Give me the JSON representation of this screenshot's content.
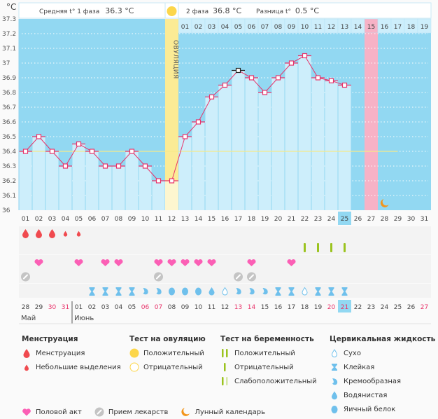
{
  "header": {
    "unit": "°C",
    "phase1_label": "Средняя t° 1 фаза",
    "phase1_value": "36.3 °C",
    "phase2_label": "2 фаза",
    "phase2_value": "36.8 °C",
    "diff_label": "Разница t°",
    "diff_value": "0.5 °C",
    "ovulation_label": "ОВУЛЯЦИЯ"
  },
  "chart_data": {
    "type": "bar",
    "title": "",
    "ylabel": "°C",
    "ylim": [
      36.0,
      37.3
    ],
    "yticks": [
      "36",
      "36.1",
      "36.2",
      "36.3",
      "36.4",
      "36.5",
      "36.6",
      "36.7",
      "36.8",
      "36.9",
      "37",
      "37.1",
      "37.2",
      "37.3"
    ],
    "coverline": 36.4,
    "cycle_days": [
      "01",
      "02",
      "03",
      "04",
      "05",
      "06",
      "07",
      "08",
      "09",
      "10",
      "11",
      "12",
      "13",
      "14",
      "15",
      "16",
      "17",
      "18",
      "19",
      "20",
      "21",
      "22",
      "23",
      "24",
      "25",
      "26",
      "27",
      "28",
      "29",
      "30",
      "31"
    ],
    "values": [
      36.4,
      36.5,
      36.4,
      36.3,
      36.45,
      36.4,
      36.3,
      36.3,
      36.4,
      36.3,
      36.2,
      36.2,
      36.5,
      36.6,
      36.77,
      36.85,
      36.95,
      36.9,
      36.8,
      36.9,
      37.0,
      37.05,
      36.9,
      36.88,
      36.85,
      null,
      null,
      null,
      null,
      null,
      null
    ],
    "highlighted_point_day": "17",
    "ovulation_day": "12",
    "current_day": "25",
    "expected_period_day": "27",
    "luteal_days": [
      "01",
      "02",
      "03",
      "04",
      "05",
      "06",
      "07",
      "08",
      "09",
      "10",
      "11",
      "12",
      "13",
      "14",
      "15",
      "16",
      "17",
      "18",
      "19"
    ],
    "luteal_highlight": "15",
    "moon_day": "28",
    "calendar_dates": [
      "28",
      "29",
      "30",
      "31",
      "01",
      "02",
      "03",
      "04",
      "05",
      "06",
      "07",
      "08",
      "09",
      "10",
      "11",
      "12",
      "13",
      "14",
      "15",
      "16",
      "17",
      "18",
      "19",
      "20",
      "21",
      "22",
      "23",
      "24",
      "25",
      "26",
      "27"
    ],
    "weekend_dates_idx": [
      2,
      3,
      9,
      10,
      16,
      17,
      23,
      24,
      30
    ],
    "today_date_idx": 24,
    "month_labels": [
      {
        "label": "Май",
        "start_idx": 0
      },
      {
        "label": "Июнь",
        "start_idx": 4
      }
    ],
    "menstruation": [
      "heavy",
      "heavy",
      "heavy",
      "light",
      "light",
      null,
      null,
      null,
      null,
      null,
      null,
      null,
      null,
      null,
      null,
      null,
      null,
      null,
      null,
      null,
      null,
      null,
      null,
      null,
      null,
      null,
      null,
      null,
      null,
      null,
      null
    ],
    "pregnancy_test": [
      null,
      null,
      null,
      null,
      null,
      null,
      null,
      null,
      null,
      null,
      null,
      null,
      null,
      null,
      null,
      null,
      null,
      null,
      null,
      null,
      null,
      "negative",
      "negative",
      "negative",
      "negative",
      null,
      null,
      null,
      null,
      null,
      null
    ],
    "intercourse": [
      false,
      true,
      false,
      false,
      true,
      false,
      true,
      true,
      false,
      false,
      true,
      true,
      true,
      true,
      true,
      false,
      false,
      true,
      false,
      false,
      true,
      false,
      false,
      false,
      false,
      false,
      false,
      false,
      false,
      false,
      false
    ],
    "medication": [
      true,
      false,
      false,
      false,
      false,
      false,
      false,
      false,
      false,
      false,
      true,
      false,
      false,
      false,
      false,
      false,
      true,
      true,
      false,
      false,
      false,
      false,
      false,
      false,
      false,
      false,
      false,
      false,
      false,
      false,
      false
    ],
    "cervical_fluid": [
      null,
      null,
      null,
      null,
      null,
      "sticky",
      "sticky",
      "sticky",
      "sticky",
      "creamy",
      "creamy",
      "egg",
      "egg",
      "egg",
      "watery",
      "dry",
      "creamy",
      "creamy",
      "creamy",
      "sticky",
      "sticky",
      "dry",
      "sticky",
      "sticky",
      "sticky",
      null,
      null,
      null,
      null,
      null,
      null
    ]
  },
  "legend": {
    "menstruation": {
      "title": "Менструация",
      "items": [
        "Менструация",
        "Небольшие выделения"
      ]
    },
    "ovulation_test": {
      "title": "Тест на овуляцию",
      "items": [
        "Положительный",
        "Отрицательный"
      ]
    },
    "pregnancy_test": {
      "title": "Тест на беременность",
      "items": [
        "Положительный",
        "Отрицательный",
        "Слабоположительный"
      ]
    },
    "cervical_fluid": {
      "title": "Цервикальная жидкость",
      "items": [
        "Сухо",
        "Клейкая",
        "Кремообразная",
        "Водянистая",
        "Яичный белок"
      ]
    },
    "bottom": [
      "Половой акт",
      "Прием лекарств",
      "Лунный календарь"
    ]
  },
  "colors": {
    "sky": "#92d8f2",
    "bar": "#cdeefb",
    "line": "#e8336a",
    "ovulation": "#fbeb95",
    "period": "#f7b2c6",
    "coverline": "#f5e98a",
    "menstruation": "#f04a4f",
    "heart": "#fb5fb5",
    "pill": "#c4c4c4",
    "fluid": "#6fc0ec",
    "test": "#9bc31e",
    "moon": "#f3951b",
    "weekend": "#e8336a"
  }
}
